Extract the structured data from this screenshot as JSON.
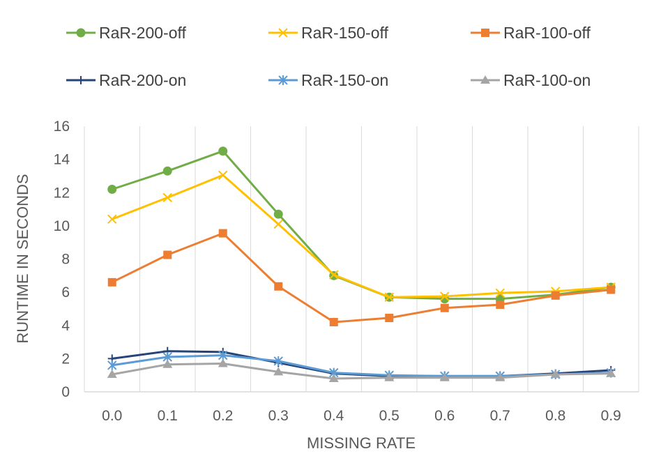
{
  "chart_data": {
    "type": "line",
    "title": "",
    "xlabel": "MISSING RATE",
    "ylabel": "RUNTIME IN SECONDS",
    "x": [
      0.0,
      0.1,
      0.2,
      0.3,
      0.4,
      0.5,
      0.6,
      0.7,
      0.8,
      0.9
    ],
    "x_tick_labels": [
      "0.0",
      "0.1",
      "0.2",
      "0.3",
      "0.4",
      "0.5",
      "0.6",
      "0.7",
      "0.8",
      "0.9"
    ],
    "ylim": [
      0,
      16
    ],
    "y_ticks": [
      0,
      2,
      4,
      6,
      8,
      10,
      12,
      14,
      16
    ],
    "grid": "vertical",
    "legend_position": "top",
    "series": [
      {
        "name": "RaR-200-off",
        "color": "#70ad47",
        "marker": "circle",
        "values": [
          12.2,
          13.3,
          14.5,
          10.7,
          7.0,
          5.7,
          5.6,
          5.6,
          5.85,
          6.3
        ]
      },
      {
        "name": "RaR-150-off",
        "color": "#ffc000",
        "marker": "x",
        "values": [
          10.4,
          11.7,
          13.05,
          10.1,
          7.05,
          5.7,
          5.75,
          5.95,
          6.05,
          6.3
        ]
      },
      {
        "name": "RaR-100-off",
        "color": "#ed7d31",
        "marker": "square",
        "values": [
          6.6,
          8.25,
          9.55,
          6.35,
          4.2,
          4.45,
          5.05,
          5.25,
          5.8,
          6.15
        ]
      },
      {
        "name": "RaR-200-on",
        "color": "#264478",
        "marker": "plus",
        "values": [
          2.0,
          2.45,
          2.4,
          1.75,
          1.1,
          0.95,
          0.95,
          0.95,
          1.1,
          1.3
        ]
      },
      {
        "name": "RaR-150-on",
        "color": "#5b9bd5",
        "marker": "asterisk",
        "values": [
          1.6,
          2.1,
          2.2,
          1.85,
          1.15,
          1.0,
          0.95,
          0.95,
          1.05,
          1.15
        ]
      },
      {
        "name": "RaR-100-on",
        "color": "#a5a5a5",
        "marker": "triangle",
        "values": [
          1.05,
          1.65,
          1.7,
          1.2,
          0.8,
          0.85,
          0.85,
          0.85,
          1.05,
          1.1
        ]
      }
    ]
  }
}
